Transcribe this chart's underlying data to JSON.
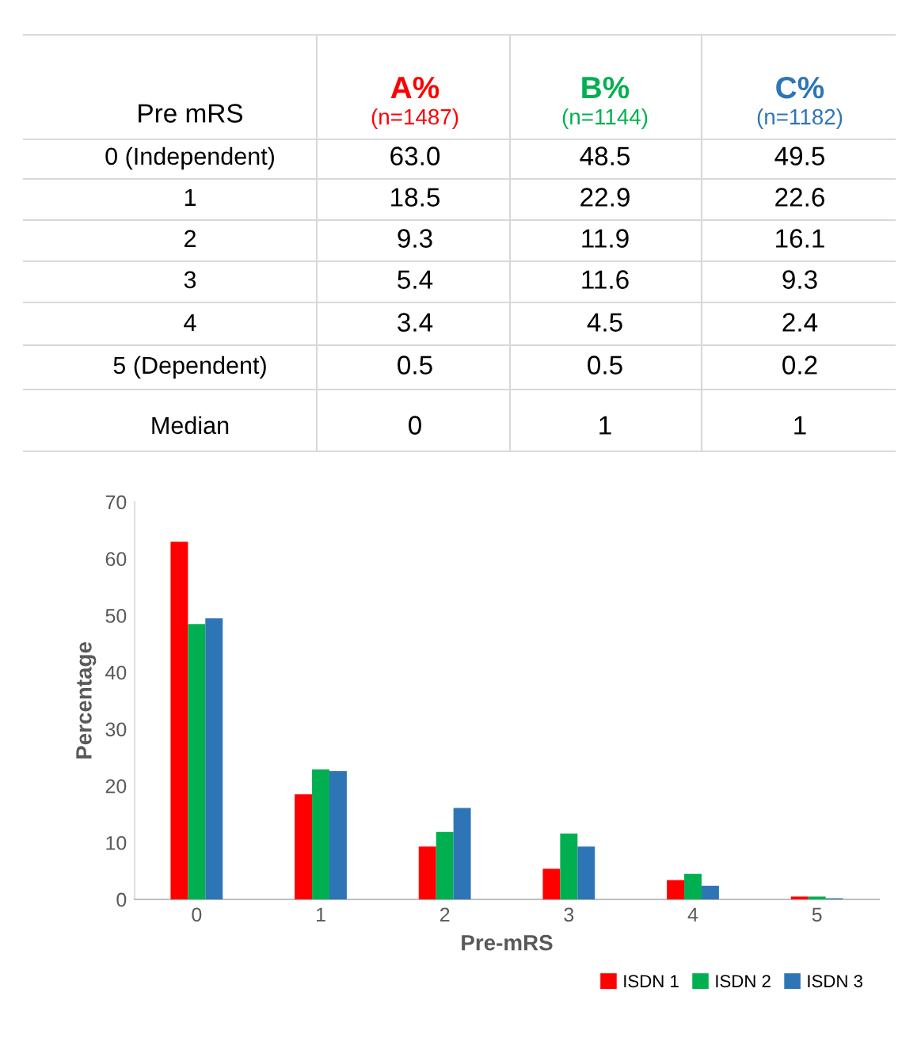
{
  "chart_data": {
    "type": "bar",
    "categories": [
      "0",
      "1",
      "2",
      "3",
      "4",
      "5"
    ],
    "series": [
      {
        "name": "ISDN 1",
        "color": "#ff0000",
        "values": [
          63.0,
          18.5,
          9.3,
          5.4,
          3.4,
          0.5
        ]
      },
      {
        "name": "ISDN 2",
        "color": "#00b050",
        "values": [
          48.5,
          22.9,
          11.9,
          11.6,
          4.5,
          0.5
        ]
      },
      {
        "name": "ISDN 3",
        "color": "#2e75b6",
        "values": [
          49.5,
          22.6,
          16.1,
          9.3,
          2.4,
          0.2
        ]
      }
    ],
    "xlabel": "Pre-mRS",
    "ylabel": "Percentage",
    "ylim": [
      0,
      70
    ],
    "yticks": [
      0,
      10,
      20,
      30,
      40,
      50,
      60,
      70
    ],
    "grid": false,
    "legend": "bottom right",
    "annotations": [
      "Pre mRS",
      "A%\n(n=1487)",
      "B%\n(n=1144)",
      "C%\n(n=1182)",
      "0 (Independent)",
      "63.0",
      "48.5",
      "49.5",
      "1",
      "18.5",
      "22.9",
      "22.6",
      "2",
      "9.3",
      "11.9",
      "16.1",
      "3",
      "5.4",
      "11.6",
      "9.3",
      "4",
      "3.4",
      "4.5",
      "2.4",
      "5 (Dependent)",
      "0.5",
      "0.5",
      "0.2",
      "Median",
      "0",
      "1",
      "1"
    ]
  }
}
